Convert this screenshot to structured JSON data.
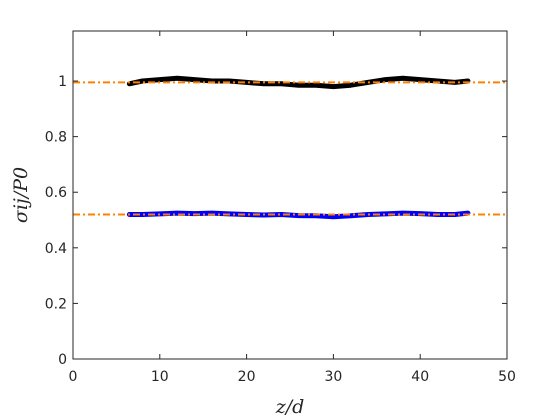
{
  "chart_data": {
    "type": "line",
    "title": "",
    "xlabel": "z/d",
    "ylabel": "σij/P0",
    "xlim": [
      0,
      50
    ],
    "ylim": [
      0,
      1.18
    ],
    "xticks": [
      0,
      10,
      20,
      30,
      40,
      50
    ],
    "yticks": [
      0,
      0.2,
      0.4,
      0.6,
      0.8,
      1
    ],
    "xtick_labels": [
      "0",
      "10",
      "20",
      "30",
      "40",
      "50"
    ],
    "ytick_labels": [
      "0",
      "0.2",
      "0.4",
      "0.6",
      "0.8",
      "1"
    ],
    "grid": false,
    "legend": "none",
    "series": [
      {
        "color": "#000000",
        "style": "thick-noisy-line",
        "x": [
          6.5,
          8,
          10,
          12,
          14,
          16,
          18,
          20,
          22,
          24,
          26,
          28,
          30,
          32,
          34,
          36,
          38,
          40,
          42,
          44,
          45.5
        ],
        "y": [
          0.99,
          1.0,
          1.005,
          1.01,
          1.005,
          1.0,
          1.0,
          0.995,
          0.99,
          0.99,
          0.985,
          0.985,
          0.98,
          0.985,
          0.995,
          1.005,
          1.01,
          1.005,
          1.0,
          0.995,
          1.0
        ]
      },
      {
        "color": "#0000ff",
        "style": "thick-noisy-line",
        "x": [
          6.5,
          8,
          10,
          12,
          14,
          16,
          18,
          20,
          22,
          24,
          26,
          28,
          30,
          32,
          34,
          36,
          38,
          40,
          42,
          44,
          45.5
        ],
        "y": [
          0.52,
          0.52,
          0.522,
          0.525,
          0.523,
          0.525,
          0.522,
          0.52,
          0.518,
          0.52,
          0.516,
          0.515,
          0.512,
          0.515,
          0.52,
          0.522,
          0.525,
          0.523,
          0.52,
          0.52,
          0.525
        ]
      },
      {
        "color": "#ff8000",
        "style": "dash-dot",
        "x": [
          0,
          50
        ],
        "y": [
          0.995,
          0.995
        ]
      },
      {
        "color": "#ff8000",
        "style": "dash-dot",
        "x": [
          0,
          50
        ],
        "y": [
          0.52,
          0.52
        ]
      }
    ]
  }
}
